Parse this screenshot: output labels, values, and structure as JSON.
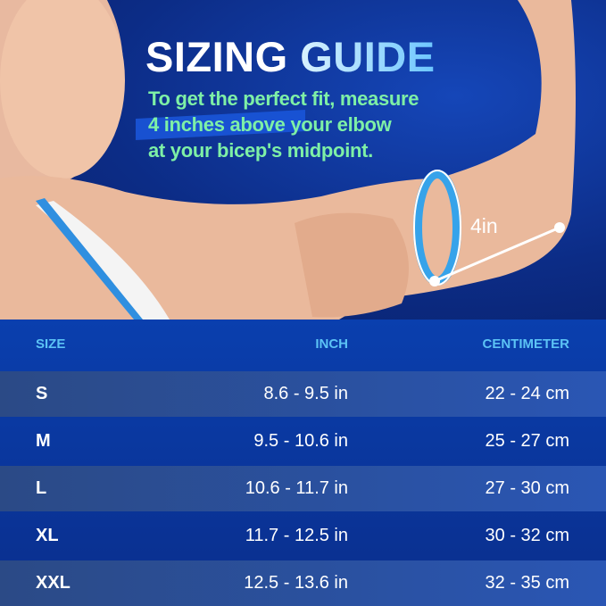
{
  "header": {
    "title_white": "SIZING",
    "title_blue": "GUIDE",
    "subtitle_lines": [
      "To get the perfect fit, measure",
      "4 inches above your elbow",
      "at your bicep's midpoint."
    ]
  },
  "illustration": {
    "measure_label": "4in"
  },
  "table": {
    "columns": [
      "SIZE",
      "INCH",
      "CENTIMETER"
    ],
    "rows": [
      {
        "size": "S",
        "inch": "8.6 - 9.5 in",
        "cm": "22 - 24 cm"
      },
      {
        "size": "M",
        "inch": "9.5 - 10.6 in",
        "cm": "25 - 27 cm"
      },
      {
        "size": "L",
        "inch": "10.6 - 11.7 in",
        "cm": "27 - 30 cm"
      },
      {
        "size": "XL",
        "inch": "11.7 - 12.5 in",
        "cm": "30 - 32 cm"
      },
      {
        "size": "XXL",
        "inch": "12.5 - 13.6 in",
        "cm": "32 - 35 cm"
      }
    ]
  },
  "colors": {
    "background": "#0c2c86",
    "title_accent": "#6cc6ff",
    "subtitle": "#7ef0a6",
    "column_header": "#5cc3f5"
  }
}
